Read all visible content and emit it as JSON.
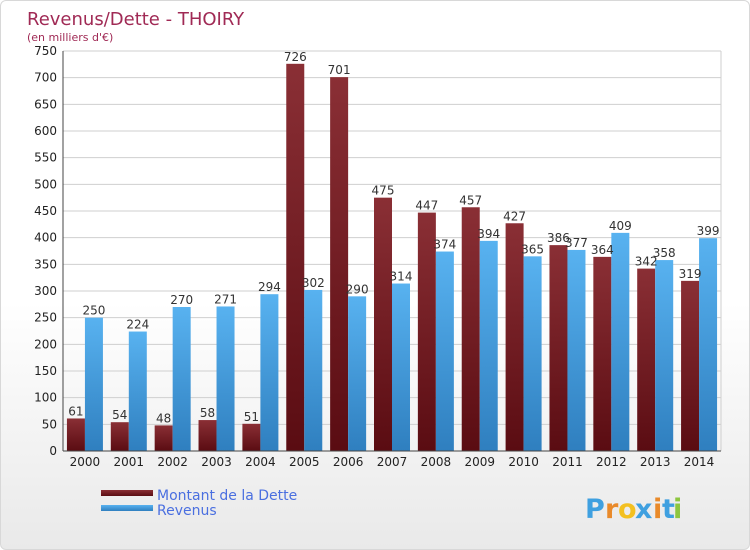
{
  "chart_data": {
    "type": "bar",
    "title": "Revenus/Dette - THOIRY",
    "subtitle": "(en milliers d'€)",
    "xlabel": "",
    "ylabel": "",
    "ylim": [
      0,
      750
    ],
    "yticks": [
      0,
      50,
      100,
      150,
      200,
      250,
      300,
      350,
      400,
      450,
      500,
      550,
      600,
      650,
      700,
      750
    ],
    "grid": true,
    "legend_position": "bottom-left",
    "categories": [
      "2000",
      "2001",
      "2002",
      "2003",
      "2004",
      "2005",
      "2006",
      "2007",
      "2008",
      "2009",
      "2010",
      "2011",
      "2012",
      "2013",
      "2014"
    ],
    "series": [
      {
        "name": "Montant de la Dette",
        "color": "#7a2a2e",
        "values": [
          61,
          54,
          48,
          58,
          51,
          726,
          701,
          475,
          447,
          457,
          427,
          386,
          364,
          342,
          319
        ]
      },
      {
        "name": "Revenus",
        "color": "#4aa3e6",
        "values": [
          250,
          224,
          270,
          271,
          294,
          302,
          290,
          314,
          374,
          394,
          365,
          377,
          409,
          358,
          399
        ]
      }
    ]
  },
  "brand": {
    "text": "Proxiti",
    "letters": [
      "P",
      "r",
      "o",
      "x",
      "i",
      "t",
      "i"
    ],
    "colors": [
      "#3fa0e0",
      "#e98a2a",
      "#f3c020",
      "#3fa0e0",
      "#e98a2a",
      "#3fa0e0",
      "#8dc63f"
    ]
  }
}
